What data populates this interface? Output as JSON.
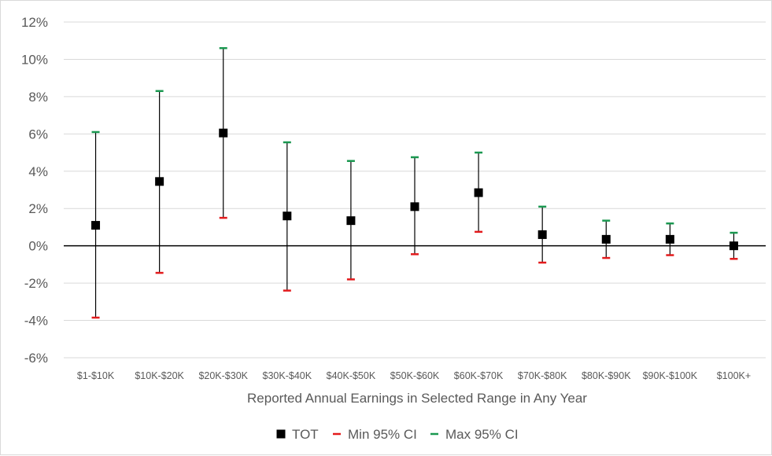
{
  "chart_data": {
    "type": "scatter",
    "title": "",
    "xlabel": "Reported Annual Earnings in Selected Range in Any Year",
    "ylabel": "",
    "ylim": [
      -6,
      12
    ],
    "y_ticks": [
      -6,
      -4,
      -2,
      0,
      2,
      4,
      6,
      8,
      10,
      12
    ],
    "y_tick_labels": [
      "-6%",
      "-4%",
      "-2%",
      "0%",
      "2%",
      "4%",
      "6%",
      "8%",
      "10%",
      "12%"
    ],
    "grid": true,
    "legend_position": "bottom",
    "categories": [
      "$1-$10K",
      "$10K-$20K",
      "$20K-$30K",
      "$30K-$40K",
      "$40K-$50K",
      "$50K-$60K",
      "$60K-$70K",
      "$70K-$80K",
      "$80K-$90K",
      "$90K-$100K",
      "$100K+"
    ],
    "series": [
      {
        "name": "TOT",
        "color": "#000000",
        "marker": "square",
        "values": [
          1.1,
          3.45,
          6.05,
          1.6,
          1.35,
          2.1,
          2.85,
          0.6,
          0.35,
          0.35,
          0.0
        ]
      },
      {
        "name": "Min 95% CI",
        "color": "#e31a1c",
        "marker": "dash",
        "values": [
          -3.85,
          -1.45,
          1.5,
          -2.4,
          -1.8,
          -0.45,
          0.75,
          -0.9,
          -0.65,
          -0.5,
          -0.7
        ]
      },
      {
        "name": "Max 95% CI",
        "color": "#1a9850",
        "marker": "dash",
        "values": [
          6.1,
          8.3,
          10.6,
          5.55,
          4.55,
          4.75,
          5.0,
          2.1,
          1.35,
          1.2,
          0.7
        ]
      }
    ]
  }
}
